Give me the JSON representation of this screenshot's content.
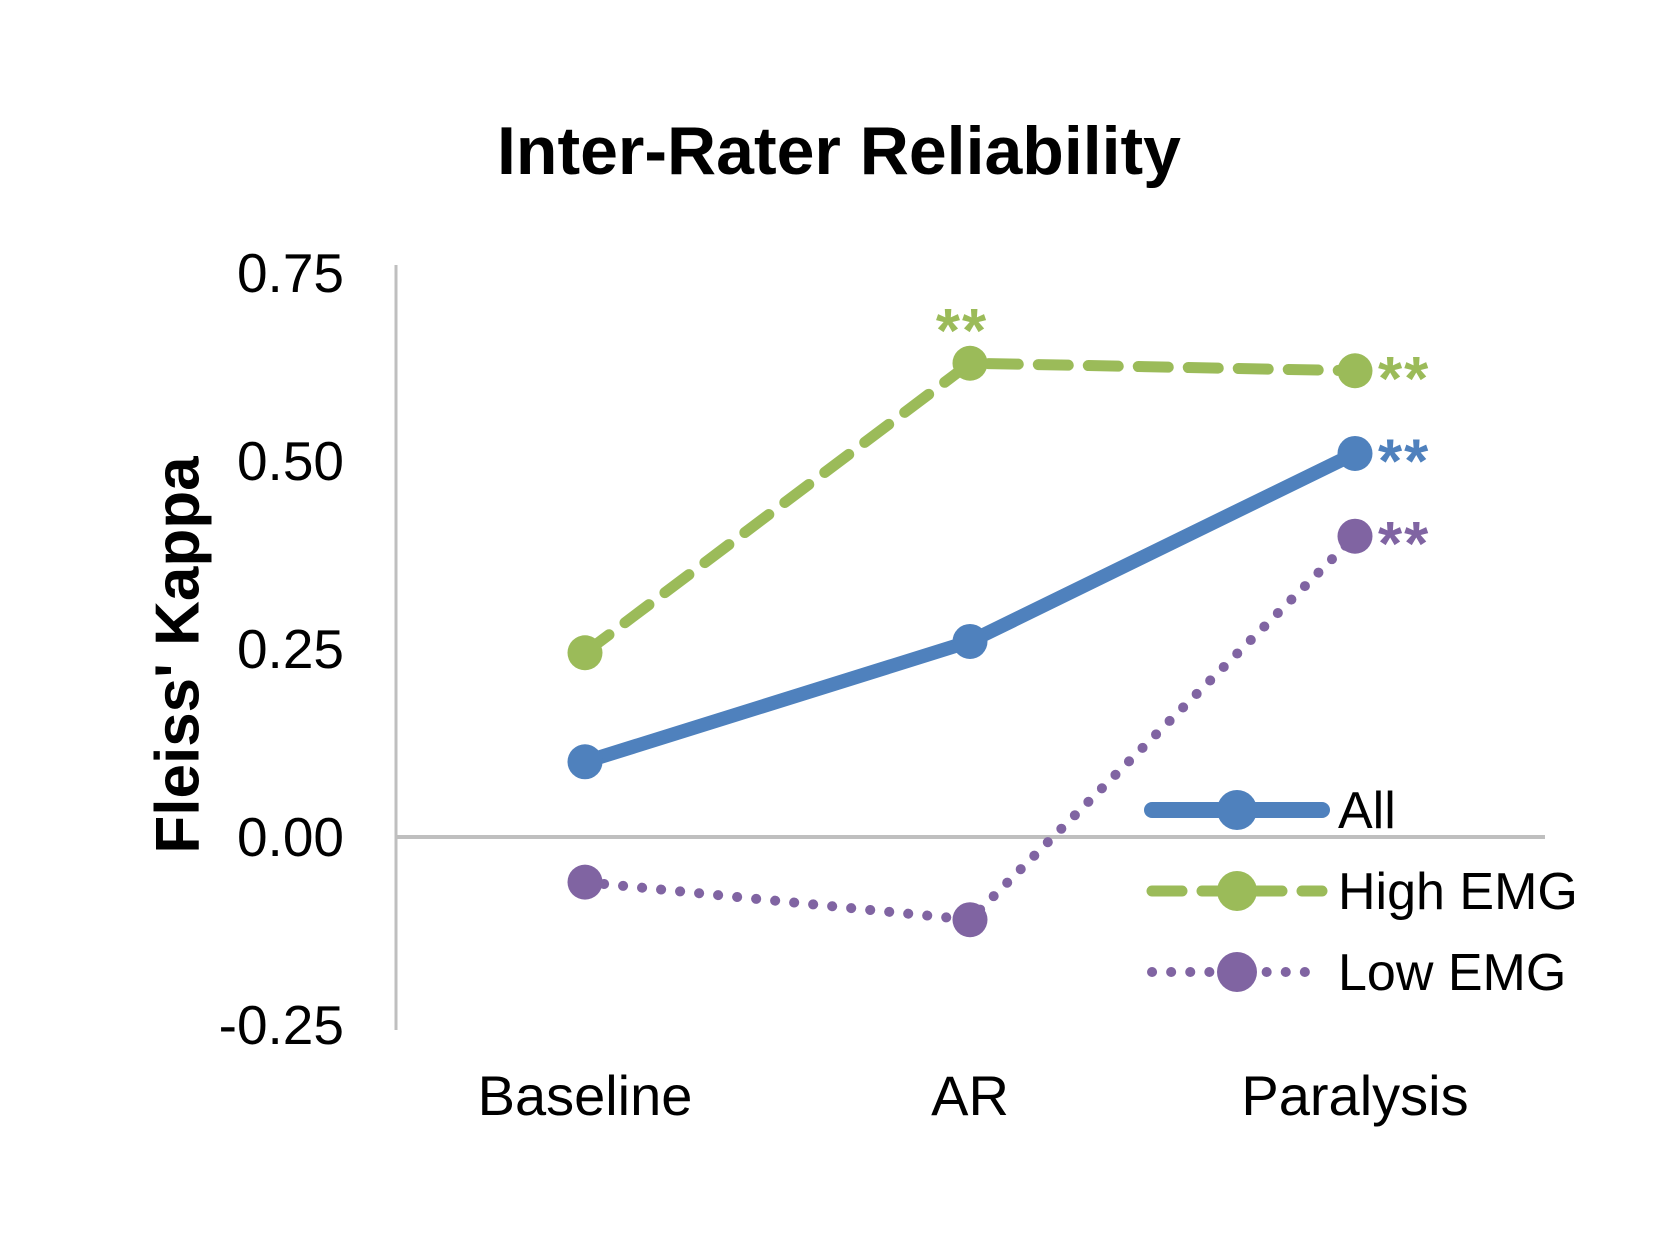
{
  "title": "Inter-Rater Reliability",
  "chart_data": {
    "type": "line",
    "title": "Inter-Rater Reliability",
    "xlabel": "",
    "ylabel": "Fleiss' Kappa",
    "categories": [
      "Baseline",
      "AR",
      "Paralysis"
    ],
    "series": [
      {
        "name": "All",
        "style": "solid",
        "color": "#4F81BD",
        "values": [
          0.1,
          0.26,
          0.51
        ]
      },
      {
        "name": "High EMG",
        "style": "dashed",
        "color": "#9BBB59",
        "values": [
          0.245,
          0.63,
          0.62
        ]
      },
      {
        "name": "Low EMG",
        "style": "dotted",
        "color": "#8064A2",
        "values": [
          -0.06,
          -0.11,
          0.4
        ]
      }
    ],
    "ylim": [
      -0.25,
      0.75
    ],
    "yticks": {
      "values": [
        0.75,
        0.5,
        0.25,
        0.0,
        -0.25
      ],
      "labels": [
        "0.75",
        "0.50",
        "0.25",
        "0.00",
        "-0.25"
      ]
    },
    "grid": "zero-line-only",
    "axis_color": "#BFBFBF",
    "text_color": "#000000",
    "legend_position": "inside-bottom-right",
    "legend_entries": [
      "All",
      "High EMG",
      "Low EMG"
    ],
    "annotations": [
      {
        "text": "**",
        "series": "High EMG",
        "category": "AR",
        "placement": "above"
      },
      {
        "text": "**",
        "series": "High EMG",
        "category": "Paralysis",
        "placement": "right"
      },
      {
        "text": "**",
        "series": "All",
        "category": "Paralysis",
        "placement": "right"
      },
      {
        "text": "**",
        "series": "Low EMG",
        "category": "Paralysis",
        "placement": "right"
      }
    ]
  }
}
